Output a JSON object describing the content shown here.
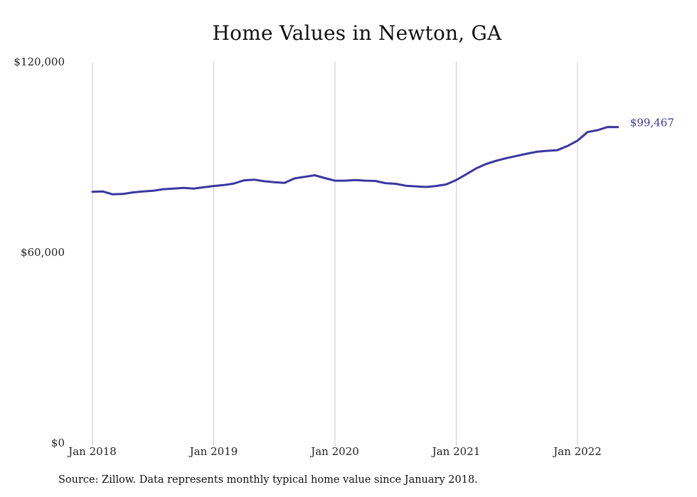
{
  "chart_data": {
    "type": "line",
    "title": "Home Values in Newton, GA",
    "xlabel": "",
    "ylabel": "",
    "ylim": [
      0,
      120000
    ],
    "y_ticks": [
      {
        "value": 0,
        "label": "$0"
      },
      {
        "value": 60000,
        "label": "$60,000"
      },
      {
        "value": 120000,
        "label": "$120,000"
      }
    ],
    "x_ticks": [
      {
        "value": "2018-01",
        "label": "Jan 2018"
      },
      {
        "value": "2019-01",
        "label": "Jan 2019"
      },
      {
        "value": "2020-01",
        "label": "Jan 2020"
      },
      {
        "value": "2021-01",
        "label": "Jan 2021"
      },
      {
        "value": "2022-01",
        "label": "Jan 2022"
      }
    ],
    "grid": {
      "vertical": true,
      "horizontal": false
    },
    "legend": "none",
    "line_color": "#3b36a0",
    "grid_color": "#c8c8c8",
    "series": [
      {
        "x": [
          "2018-01",
          "2018-02",
          "2018-03",
          "2018-04",
          "2018-05",
          "2018-06",
          "2018-07",
          "2018-08",
          "2018-09",
          "2018-10",
          "2018-11",
          "2018-12",
          "2019-01",
          "2019-02",
          "2019-03",
          "2019-04",
          "2019-05",
          "2019-06",
          "2019-07",
          "2019-08",
          "2019-09",
          "2019-10",
          "2019-11",
          "2019-12",
          "2020-01",
          "2020-02",
          "2020-03",
          "2020-04",
          "2020-05",
          "2020-06",
          "2020-07",
          "2020-08",
          "2020-09",
          "2020-10",
          "2020-11",
          "2020-12",
          "2021-01",
          "2021-02",
          "2021-03",
          "2021-04",
          "2021-05",
          "2021-06",
          "2021-07",
          "2021-08",
          "2021-09",
          "2021-10",
          "2021-11",
          "2021-12",
          "2022-01",
          "2022-02",
          "2022-03",
          "2022-04",
          "2022-05"
        ],
        "values": [
          79100,
          79200,
          78300,
          78400,
          78900,
          79200,
          79400,
          79900,
          80100,
          80300,
          80100,
          80500,
          80900,
          81200,
          81700,
          82700,
          82900,
          82400,
          82100,
          81900,
          83300,
          83800,
          84300,
          83400,
          82600,
          82600,
          82800,
          82600,
          82500,
          81800,
          81600,
          81000,
          80800,
          80600,
          80900,
          81400,
          82800,
          84600,
          86500,
          87900,
          88900,
          89700,
          90400,
          91100,
          91700,
          92000,
          92200,
          93500,
          95200,
          97900,
          98500,
          99500,
          99467
        ]
      }
    ],
    "end_label": "$99,467",
    "source": "Source: Zillow. Data represents monthly typical home value since January 2018."
  }
}
